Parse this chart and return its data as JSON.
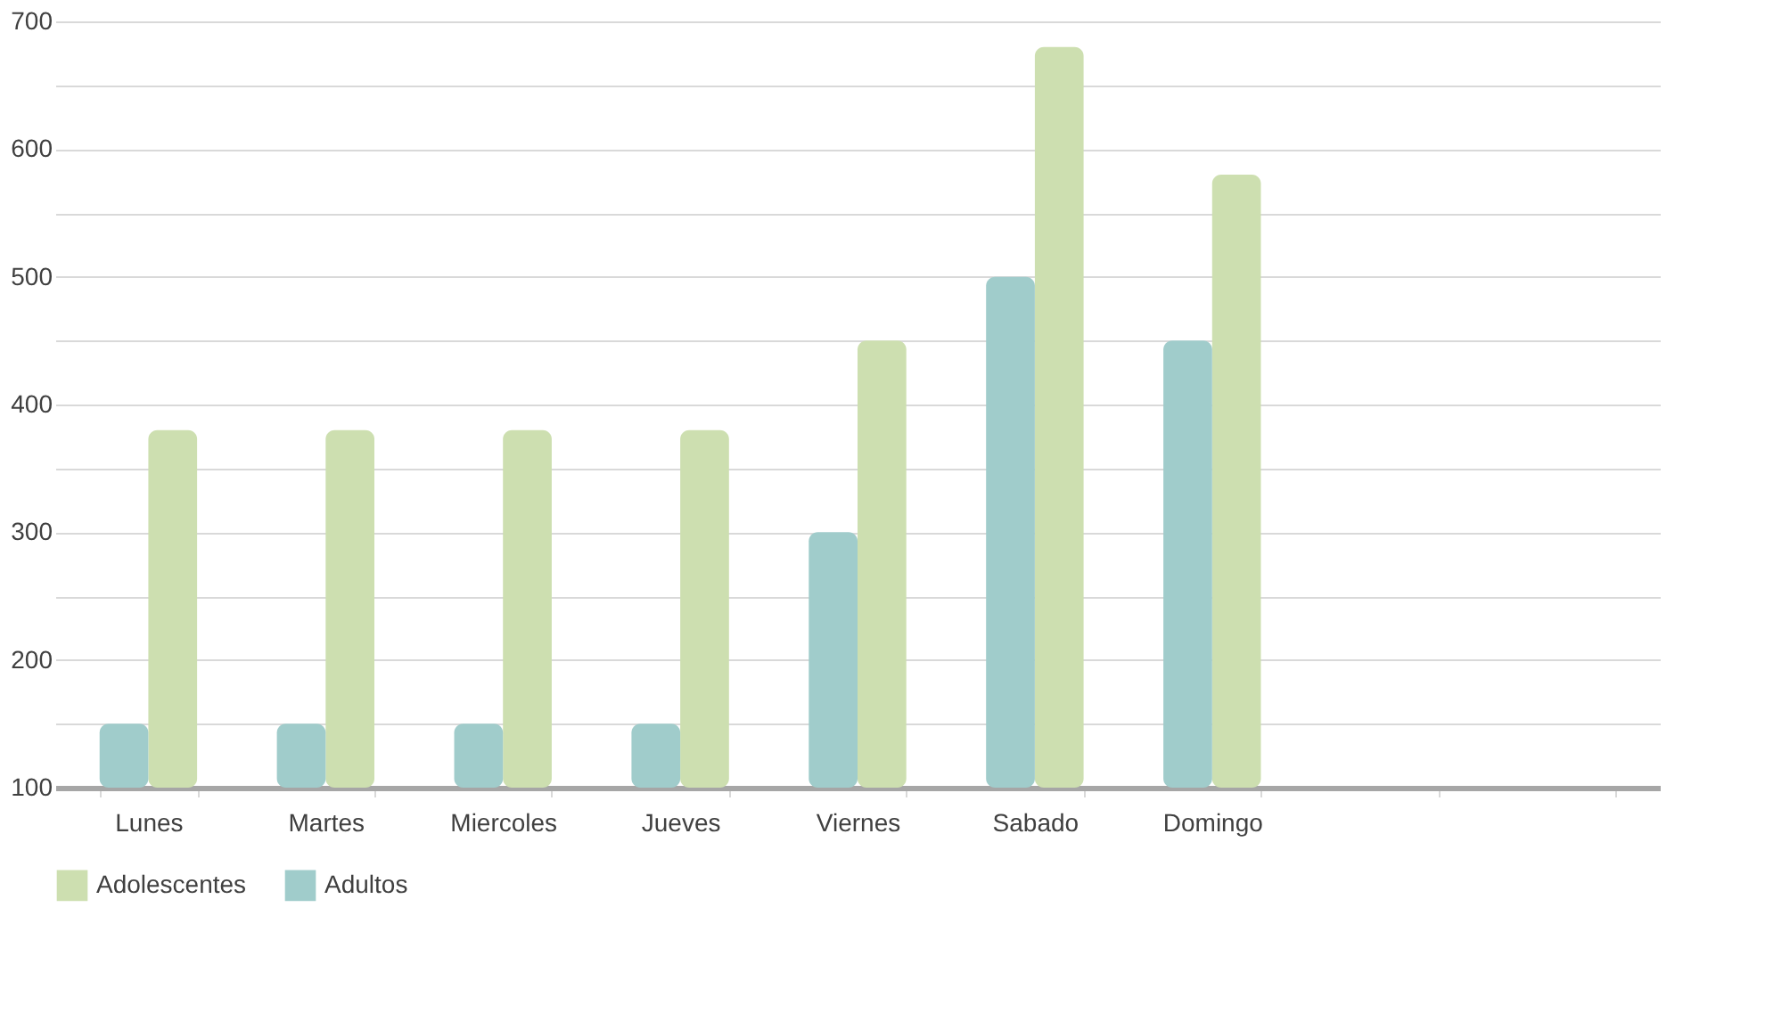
{
  "chart_data": {
    "type": "bar",
    "categories": [
      "Lunes",
      "Martes",
      "Miercoles",
      "Jueves",
      "Viernes",
      "Sabado",
      "Domingo",
      null,
      null
    ],
    "series": [
      {
        "name": "Adolescentes",
        "color": "#cddfb0",
        "values": [
          380,
          380,
          380,
          380,
          450,
          680,
          580,
          null,
          null
        ]
      },
      {
        "name": "Adultos",
        "color": "#a0cccb",
        "values": [
          150,
          150,
          150,
          150,
          300,
          500,
          450,
          null,
          null
        ]
      }
    ],
    "ylim": [
      100,
      700
    ],
    "yticks": [
      100,
      {
        "value": 150,
        "label": null
      },
      200,
      {
        "value": 250,
        "label": null
      },
      300,
      {
        "value": 350,
        "label": null
      },
      400,
      {
        "value": 450,
        "label": null
      },
      500,
      {
        "value": 550,
        "label": null
      },
      600,
      {
        "value": 650,
        "label": null
      },
      700
    ],
    "grid": "y",
    "legend": "bottom"
  }
}
